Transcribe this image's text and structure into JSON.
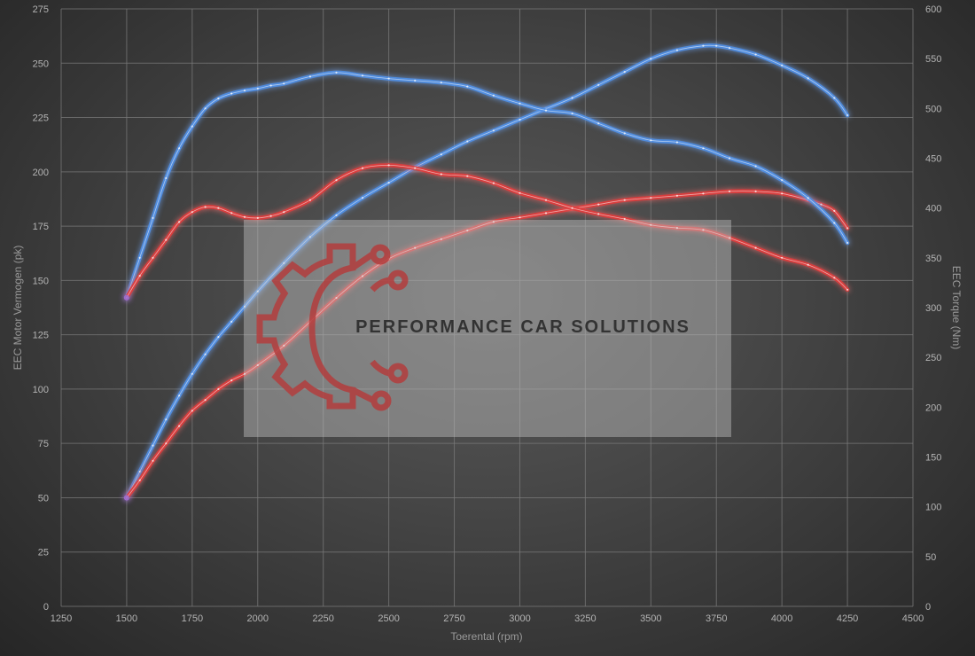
{
  "chart_data": {
    "type": "line",
    "xlabel": "Toerental (rpm)",
    "ylabel_left": "EEC Motor Vermogen (pk)",
    "ylabel_right": "EEC Torque (Nm)",
    "xlim": [
      1250,
      4500
    ],
    "ylim_left": [
      0,
      275
    ],
    "ylim_right": [
      0,
      600
    ],
    "x_ticks": [
      1250,
      1500,
      1750,
      2000,
      2250,
      2500,
      2750,
      3000,
      3250,
      3500,
      3750,
      4000,
      4250,
      4500
    ],
    "y_left_ticks": [
      0,
      25,
      50,
      75,
      100,
      125,
      150,
      175,
      200,
      225,
      250,
      275
    ],
    "y_right_ticks": [
      0,
      50,
      100,
      150,
      200,
      250,
      300,
      350,
      400,
      450,
      500,
      550,
      600
    ],
    "grid": true,
    "series": [
      {
        "color": "#4f8fe6",
        "axis": "left",
        "x": [
          1500,
          1550,
          1600,
          1650,
          1700,
          1750,
          1800,
          1850,
          1900,
          1950,
          2000,
          2100,
          2200,
          2300,
          2400,
          2500,
          2600,
          2700,
          2800,
          2900,
          3000,
          3100,
          3200,
          3300,
          3400,
          3500,
          3600,
          3700,
          3750,
          3800,
          3900,
          4000,
          4100,
          4200,
          4250
        ],
        "values": [
          50,
          62,
          74,
          86,
          97,
          107,
          116,
          124,
          131,
          138,
          145,
          158,
          170,
          180,
          188,
          195,
          202,
          208,
          214,
          219,
          224,
          229,
          234,
          240,
          246,
          252,
          256,
          258,
          258,
          257,
          254,
          249,
          243,
          234,
          226
        ]
      },
      {
        "color": "#e03b3b",
        "axis": "left",
        "x": [
          1500,
          1550,
          1600,
          1650,
          1700,
          1750,
          1800,
          1850,
          1900,
          1950,
          2000,
          2100,
          2200,
          2300,
          2400,
          2500,
          2600,
          2700,
          2800,
          2900,
          3000,
          3100,
          3200,
          3300,
          3400,
          3500,
          3600,
          3700,
          3800,
          3900,
          4000,
          4100,
          4150,
          4200,
          4250
        ],
        "values": [
          50,
          58,
          67,
          75,
          83,
          90,
          95,
          100,
          104,
          107,
          111,
          120,
          131,
          142,
          152,
          160,
          165,
          169,
          173,
          177,
          179,
          181,
          183,
          185,
          187,
          188,
          189,
          190,
          191,
          191,
          190,
          187,
          185,
          182,
          174
        ]
      },
      {
        "color": "#4f8fe6",
        "axis": "right",
        "x": [
          1500,
          1550,
          1600,
          1650,
          1700,
          1750,
          1800,
          1850,
          1900,
          1950,
          2000,
          2050,
          2100,
          2200,
          2300,
          2400,
          2500,
          2600,
          2700,
          2800,
          2900,
          3000,
          3100,
          3200,
          3300,
          3400,
          3500,
          3600,
          3700,
          3800,
          3900,
          4000,
          4100,
          4200,
          4250
        ],
        "values": [
          310,
          350,
          390,
          430,
          460,
          482,
          500,
          510,
          515,
          518,
          520,
          523,
          525,
          532,
          536,
          533,
          530,
          528,
          526,
          522,
          513,
          505,
          498,
          495,
          485,
          475,
          468,
          466,
          460,
          450,
          442,
          428,
          410,
          385,
          365
        ]
      },
      {
        "color": "#e03b3b",
        "axis": "right",
        "x": [
          1500,
          1550,
          1600,
          1650,
          1700,
          1750,
          1800,
          1850,
          1900,
          1950,
          2000,
          2050,
          2100,
          2200,
          2300,
          2400,
          2500,
          2600,
          2700,
          2800,
          2900,
          3000,
          3100,
          3200,
          3300,
          3400,
          3500,
          3600,
          3700,
          3800,
          3900,
          4000,
          4100,
          4200,
          4250
        ],
        "values": [
          310,
          332,
          350,
          368,
          386,
          396,
          401,
          400,
          395,
          391,
          390,
          392,
          396,
          408,
          428,
          440,
          443,
          440,
          434,
          432,
          425,
          415,
          408,
          400,
          394,
          389,
          383,
          380,
          378,
          370,
          360,
          350,
          343,
          330,
          318
        ]
      }
    ]
  },
  "watermark": {
    "text": "PERFORMANCE CAR SOLUTIONS",
    "text_color": "#333333",
    "logo_color": "#b33d3d",
    "logo": "gear-circuit-logo"
  }
}
